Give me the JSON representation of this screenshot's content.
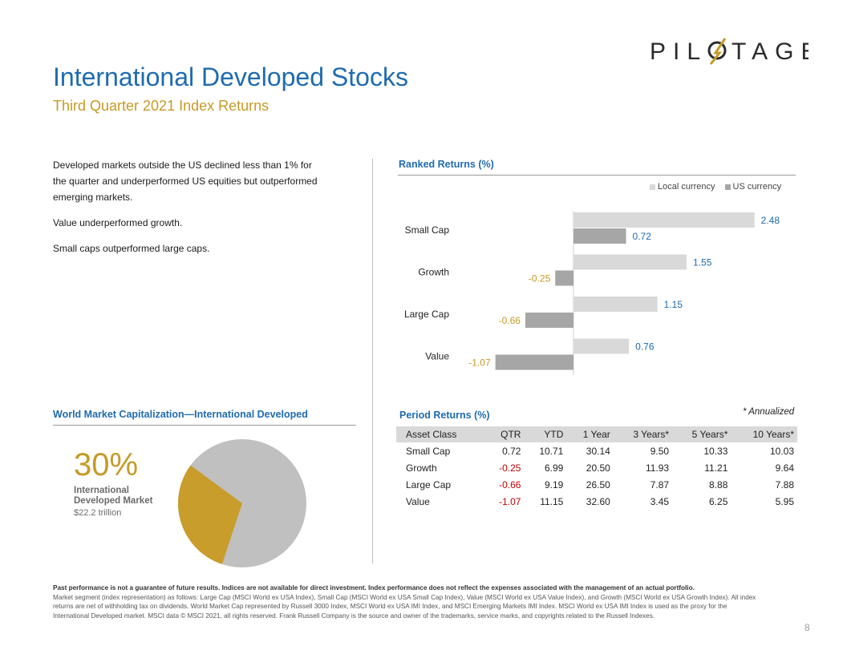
{
  "brand": {
    "name": "PILOTAGE"
  },
  "title": "International Developed Stocks",
  "subtitle": "Third Quarter 2021 Index Returns",
  "commentary": [
    "Developed  markets outside the US declined less than 1% for the quarter and underperformed  US equities but outperformed  emerging markets.",
    "Value underperformed  growth.",
    "Small caps outperformed  large caps."
  ],
  "ranked": {
    "title": "Ranked Returns  (%)",
    "legend": {
      "local": "Local currency",
      "usd": "US currency"
    }
  },
  "chart_data": {
    "type": "bar",
    "orientation": "horizontal",
    "title": "Ranked Returns  (%)",
    "categories": [
      "Small Cap",
      "Growth",
      "Large Cap",
      "Value"
    ],
    "series": [
      {
        "name": "Local currency",
        "values": [
          2.48,
          1.55,
          1.15,
          0.76
        ],
        "color": "#d9d9d9"
      },
      {
        "name": "US currency",
        "values": [
          0.72,
          -0.25,
          -0.66,
          -1.07
        ],
        "color": "#a6a6a6"
      }
    ],
    "label_colors": {
      "positive": "#1f6bb0",
      "negative": "#c79a26"
    },
    "legend_position": "top-right",
    "grid": false
  },
  "mcap": {
    "title": "World Market Capitalization—International Developed",
    "percent": "30%",
    "percent_value": 30,
    "label_line1": "International",
    "label_line2": "Developed  Market",
    "value": "$22.2 trillion",
    "colors": {
      "highlight": "#c99d2b",
      "rest": "#c0c0c0"
    }
  },
  "period": {
    "title": "Period Returns  (%)",
    "note": "* Annualized",
    "headers": [
      "Asset Class",
      "QTR",
      "YTD",
      "1 Year",
      "3 Years*",
      "5 Years*",
      "10 Years*"
    ],
    "rows": [
      [
        "Small Cap",
        "0.72",
        "10.71",
        "30.14",
        "9.50",
        "10.33",
        "10.03"
      ],
      [
        "Growth",
        "-0.25",
        "6.99",
        "20.50",
        "11.93",
        "11.21",
        "9.64"
      ],
      [
        "Large Cap",
        "-0.66",
        "9.19",
        "26.50",
        "7.87",
        "8.88",
        "7.88"
      ],
      [
        "Value",
        "-1.07",
        "11.15",
        "32.60",
        "3.45",
        "6.25",
        "5.95"
      ]
    ]
  },
  "footer": {
    "bold": "Past performance is not a guarantee of future results. Indices are not available for direct investment. Index performance does not reflect the expenses associated with the management of an actual portfolio.",
    "text": "Market segment (index representation) as follows: Large Cap (MSCI World ex USA Index), Small Cap (MSCI World ex USA Small Cap Index), Value (MSCI World ex USA Value Index), and Growth (MSCI World ex USA Growth Index). All index returns are net of withholding tax on dividends. World Market Cap represented by Russell 3000 Index, MSCI World ex USA IMI Index, and MSCI Emerging Markets IMI Index. MSCI World ex USA IMI Index is used as the proxy for the International Developed market. MSCI data © MSCI 2021, all rights reserved. Frank Russell Company is the source and owner of the trademarks, service marks, and copyrights related to the Russell Indexes."
  },
  "page_number": "8"
}
